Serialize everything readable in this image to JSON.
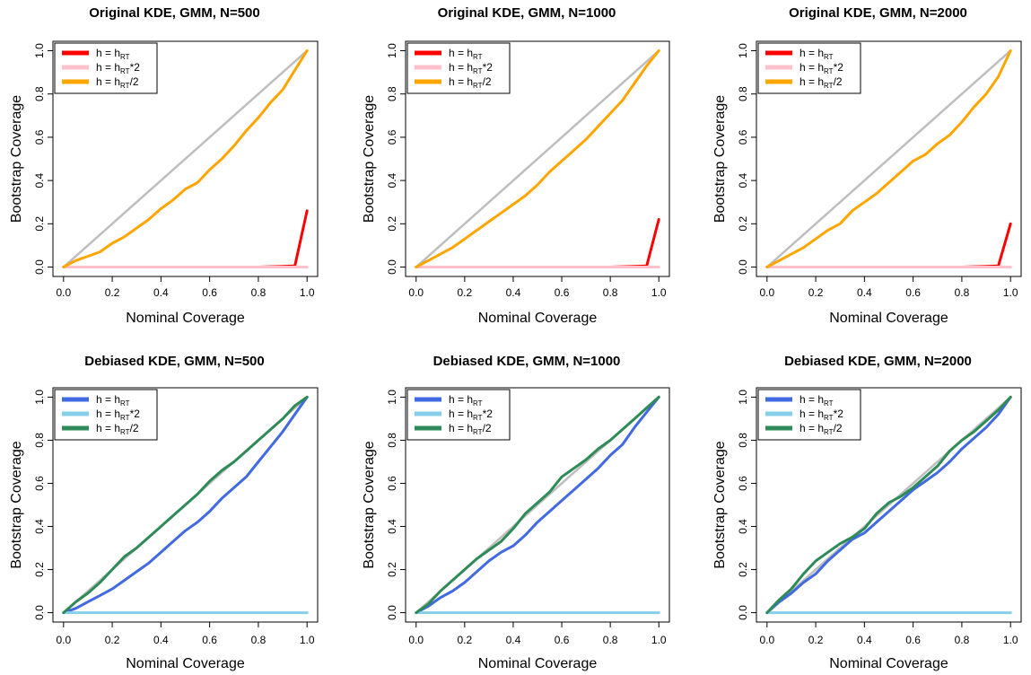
{
  "chart_data": [
    {
      "type": "line",
      "title": "Original KDE, GMM, N=500",
      "xlabel": "Nominal Coverage",
      "ylabel": "Bootstrap Coverage",
      "xlim": [
        0,
        1
      ],
      "ylim": [
        0,
        1
      ],
      "xticks": [
        "0.0",
        "0.2",
        "0.4",
        "0.6",
        "0.8",
        "1.0"
      ],
      "yticks": [
        "0.0",
        "0.2",
        "0.4",
        "0.6",
        "0.8",
        "1.0"
      ],
      "grid": false,
      "legend_position": "top-left",
      "reference_line": {
        "x": [
          0,
          1
        ],
        "y": [
          0,
          1
        ],
        "color": "#bebebe"
      },
      "series": [
        {
          "name": [
            "h = h",
            "RT",
            ""
          ],
          "color": "#ff0000",
          "x": [
            0,
            0.1,
            0.2,
            0.3,
            0.4,
            0.5,
            0.6,
            0.7,
            0.8,
            0.9,
            0.95,
            1.0
          ],
          "y": [
            0,
            0,
            0,
            0,
            0,
            0,
            0,
            0,
            0,
            0.003,
            0.005,
            0.26
          ]
        },
        {
          "name": [
            "h = h",
            "RT",
            "*2"
          ],
          "color": "#ffc0cb",
          "x": [
            0,
            1
          ],
          "y": [
            0,
            0
          ]
        },
        {
          "name": [
            "h = h",
            "RT",
            "/2"
          ],
          "color": "#ffa500",
          "x": [
            0,
            0.05,
            0.1,
            0.15,
            0.2,
            0.25,
            0.3,
            0.35,
            0.4,
            0.45,
            0.5,
            0.55,
            0.6,
            0.65,
            0.7,
            0.75,
            0.8,
            0.85,
            0.9,
            0.95,
            1.0
          ],
          "y": [
            0,
            0.03,
            0.05,
            0.07,
            0.11,
            0.14,
            0.18,
            0.22,
            0.27,
            0.31,
            0.36,
            0.39,
            0.45,
            0.5,
            0.56,
            0.63,
            0.69,
            0.76,
            0.82,
            0.91,
            1.0
          ]
        }
      ]
    },
    {
      "type": "line",
      "title": "Original KDE, GMM, N=1000",
      "xlabel": "Nominal Coverage",
      "ylabel": "Bootstrap Coverage",
      "xlim": [
        0,
        1
      ],
      "ylim": [
        0,
        1
      ],
      "xticks": [
        "0.0",
        "0.2",
        "0.4",
        "0.6",
        "0.8",
        "1.0"
      ],
      "yticks": [
        "0.0",
        "0.2",
        "0.4",
        "0.6",
        "0.8",
        "1.0"
      ],
      "grid": false,
      "legend_position": "top-left",
      "reference_line": {
        "x": [
          0,
          1
        ],
        "y": [
          0,
          1
        ],
        "color": "#bebebe"
      },
      "series": [
        {
          "name": [
            "h = h",
            "RT",
            ""
          ],
          "color": "#ff0000",
          "x": [
            0,
            0.1,
            0.2,
            0.3,
            0.4,
            0.5,
            0.6,
            0.7,
            0.8,
            0.9,
            0.95,
            1.0
          ],
          "y": [
            0,
            0,
            0,
            0,
            0,
            0,
            0,
            0,
            0,
            0.003,
            0.005,
            0.22
          ]
        },
        {
          "name": [
            "h = h",
            "RT",
            "*2"
          ],
          "color": "#ffc0cb",
          "x": [
            0,
            1
          ],
          "y": [
            0,
            0
          ]
        },
        {
          "name": [
            "h = h",
            "RT",
            "/2"
          ],
          "color": "#ffa500",
          "x": [
            0,
            0.05,
            0.1,
            0.15,
            0.2,
            0.25,
            0.3,
            0.35,
            0.4,
            0.45,
            0.5,
            0.55,
            0.6,
            0.65,
            0.7,
            0.75,
            0.8,
            0.85,
            0.9,
            0.95,
            1.0
          ],
          "y": [
            0,
            0.03,
            0.06,
            0.09,
            0.13,
            0.17,
            0.21,
            0.25,
            0.29,
            0.33,
            0.38,
            0.44,
            0.49,
            0.54,
            0.59,
            0.65,
            0.71,
            0.77,
            0.85,
            0.93,
            1.0
          ]
        }
      ]
    },
    {
      "type": "line",
      "title": "Original KDE, GMM, N=2000",
      "xlabel": "Nominal Coverage",
      "ylabel": "Bootstrap Coverage",
      "xlim": [
        0,
        1
      ],
      "ylim": [
        0,
        1
      ],
      "xticks": [
        "0.0",
        "0.2",
        "0.4",
        "0.6",
        "0.8",
        "1.0"
      ],
      "yticks": [
        "0.0",
        "0.2",
        "0.4",
        "0.6",
        "0.8",
        "1.0"
      ],
      "grid": false,
      "legend_position": "top-left",
      "reference_line": {
        "x": [
          0,
          1
        ],
        "y": [
          0,
          1
        ],
        "color": "#bebebe"
      },
      "series": [
        {
          "name": [
            "h = h",
            "RT",
            ""
          ],
          "color": "#ff0000",
          "x": [
            0,
            0.1,
            0.2,
            0.3,
            0.4,
            0.5,
            0.6,
            0.7,
            0.8,
            0.9,
            0.95,
            1.0
          ],
          "y": [
            0,
            0,
            0,
            0,
            0,
            0,
            0,
            0,
            0,
            0.003,
            0.005,
            0.2
          ]
        },
        {
          "name": [
            "h = h",
            "RT",
            "*2"
          ],
          "color": "#ffc0cb",
          "x": [
            0,
            1
          ],
          "y": [
            0,
            0
          ]
        },
        {
          "name": [
            "h = h",
            "RT",
            "/2"
          ],
          "color": "#ffa500",
          "x": [
            0,
            0.05,
            0.1,
            0.15,
            0.2,
            0.25,
            0.3,
            0.35,
            0.4,
            0.45,
            0.5,
            0.55,
            0.6,
            0.65,
            0.7,
            0.75,
            0.8,
            0.85,
            0.9,
            0.95,
            1.0
          ],
          "y": [
            0,
            0.03,
            0.06,
            0.09,
            0.13,
            0.17,
            0.2,
            0.26,
            0.3,
            0.34,
            0.39,
            0.44,
            0.49,
            0.52,
            0.57,
            0.61,
            0.67,
            0.74,
            0.8,
            0.88,
            1.0
          ]
        }
      ]
    },
    {
      "type": "line",
      "title": "Debiased KDE, GMM, N=500",
      "xlabel": "Nominal Coverage",
      "ylabel": "Bootstrap Coverage",
      "xlim": [
        0,
        1
      ],
      "ylim": [
        0,
        1
      ],
      "xticks": [
        "0.0",
        "0.2",
        "0.4",
        "0.6",
        "0.8",
        "1.0"
      ],
      "yticks": [
        "0.0",
        "0.2",
        "0.4",
        "0.6",
        "0.8",
        "1.0"
      ],
      "grid": false,
      "legend_position": "top-left",
      "reference_line": {
        "x": [
          0,
          1
        ],
        "y": [
          0,
          1
        ],
        "color": "#bebebe"
      },
      "series": [
        {
          "name": [
            "h = h",
            "RT",
            ""
          ],
          "color": "#4169e1",
          "x": [
            0,
            0.05,
            0.1,
            0.15,
            0.2,
            0.25,
            0.3,
            0.35,
            0.4,
            0.45,
            0.5,
            0.55,
            0.6,
            0.65,
            0.7,
            0.75,
            0.8,
            0.85,
            0.9,
            0.95,
            1.0
          ],
          "y": [
            0,
            0.02,
            0.05,
            0.08,
            0.11,
            0.15,
            0.19,
            0.23,
            0.28,
            0.33,
            0.38,
            0.42,
            0.47,
            0.53,
            0.58,
            0.63,
            0.7,
            0.77,
            0.84,
            0.92,
            1.0
          ]
        },
        {
          "name": [
            "h = h",
            "RT",
            "*2"
          ],
          "color": "#87ceeb",
          "x": [
            0,
            1
          ],
          "y": [
            0,
            0
          ]
        },
        {
          "name": [
            "h = h",
            "RT",
            "/2"
          ],
          "color": "#2e8b57",
          "x": [
            0,
            0.05,
            0.1,
            0.15,
            0.2,
            0.25,
            0.3,
            0.35,
            0.4,
            0.45,
            0.5,
            0.55,
            0.6,
            0.65,
            0.7,
            0.75,
            0.8,
            0.85,
            0.9,
            0.95,
            1.0
          ],
          "y": [
            0,
            0.05,
            0.09,
            0.14,
            0.2,
            0.26,
            0.3,
            0.35,
            0.4,
            0.45,
            0.5,
            0.55,
            0.61,
            0.66,
            0.7,
            0.75,
            0.8,
            0.85,
            0.9,
            0.96,
            1.0
          ]
        }
      ]
    },
    {
      "type": "line",
      "title": "Debiased KDE, GMM, N=1000",
      "xlabel": "Nominal Coverage",
      "ylabel": "Bootstrap Coverage",
      "xlim": [
        0,
        1
      ],
      "ylim": [
        0,
        1
      ],
      "xticks": [
        "0.0",
        "0.2",
        "0.4",
        "0.6",
        "0.8",
        "1.0"
      ],
      "yticks": [
        "0.0",
        "0.2",
        "0.4",
        "0.6",
        "0.8",
        "1.0"
      ],
      "grid": false,
      "legend_position": "top-left",
      "reference_line": {
        "x": [
          0,
          1
        ],
        "y": [
          0,
          1
        ],
        "color": "#bebebe"
      },
      "series": [
        {
          "name": [
            "h = h",
            "RT",
            ""
          ],
          "color": "#4169e1",
          "x": [
            0,
            0.05,
            0.1,
            0.15,
            0.2,
            0.25,
            0.3,
            0.35,
            0.4,
            0.45,
            0.5,
            0.55,
            0.6,
            0.65,
            0.7,
            0.75,
            0.8,
            0.85,
            0.9,
            0.95,
            1.0
          ],
          "y": [
            0,
            0.03,
            0.07,
            0.1,
            0.14,
            0.19,
            0.24,
            0.28,
            0.31,
            0.36,
            0.42,
            0.47,
            0.52,
            0.57,
            0.62,
            0.67,
            0.73,
            0.78,
            0.86,
            0.93,
            1.0
          ]
        },
        {
          "name": [
            "h = h",
            "RT",
            "*2"
          ],
          "color": "#87ceeb",
          "x": [
            0,
            1
          ],
          "y": [
            0,
            0
          ]
        },
        {
          "name": [
            "h = h",
            "RT",
            "/2"
          ],
          "color": "#2e8b57",
          "x": [
            0,
            0.05,
            0.1,
            0.15,
            0.2,
            0.25,
            0.3,
            0.35,
            0.4,
            0.45,
            0.5,
            0.55,
            0.6,
            0.65,
            0.7,
            0.75,
            0.8,
            0.85,
            0.9,
            0.95,
            1.0
          ],
          "y": [
            0,
            0.04,
            0.1,
            0.15,
            0.2,
            0.25,
            0.29,
            0.33,
            0.39,
            0.46,
            0.51,
            0.56,
            0.63,
            0.67,
            0.71,
            0.76,
            0.8,
            0.85,
            0.9,
            0.95,
            1.0
          ]
        }
      ]
    },
    {
      "type": "line",
      "title": "Debiased KDE, GMM, N=2000",
      "xlabel": "Nominal Coverage",
      "ylabel": "Bootstrap Coverage",
      "xlim": [
        0,
        1
      ],
      "ylim": [
        0,
        1
      ],
      "xticks": [
        "0.0",
        "0.2",
        "0.4",
        "0.6",
        "0.8",
        "1.0"
      ],
      "yticks": [
        "0.0",
        "0.2",
        "0.4",
        "0.6",
        "0.8",
        "1.0"
      ],
      "grid": false,
      "legend_position": "top-left",
      "reference_line": {
        "x": [
          0,
          1
        ],
        "y": [
          0,
          1
        ],
        "color": "#bebebe"
      },
      "series": [
        {
          "name": [
            "h = h",
            "RT",
            ""
          ],
          "color": "#4169e1",
          "x": [
            0,
            0.05,
            0.1,
            0.15,
            0.2,
            0.25,
            0.3,
            0.35,
            0.4,
            0.45,
            0.5,
            0.55,
            0.6,
            0.65,
            0.7,
            0.75,
            0.8,
            0.85,
            0.9,
            0.95,
            1.0
          ],
          "y": [
            0,
            0.05,
            0.09,
            0.14,
            0.18,
            0.24,
            0.29,
            0.34,
            0.37,
            0.42,
            0.47,
            0.52,
            0.57,
            0.61,
            0.65,
            0.7,
            0.76,
            0.81,
            0.86,
            0.92,
            1.0
          ]
        },
        {
          "name": [
            "h = h",
            "RT",
            "*2"
          ],
          "color": "#87ceeb",
          "x": [
            0,
            1
          ],
          "y": [
            0,
            0
          ]
        },
        {
          "name": [
            "h = h",
            "RT",
            "/2"
          ],
          "color": "#2e8b57",
          "x": [
            0,
            0.05,
            0.1,
            0.15,
            0.2,
            0.25,
            0.3,
            0.35,
            0.4,
            0.45,
            0.5,
            0.55,
            0.6,
            0.65,
            0.7,
            0.75,
            0.8,
            0.85,
            0.9,
            0.95,
            1.0
          ],
          "y": [
            0,
            0.06,
            0.11,
            0.18,
            0.24,
            0.28,
            0.32,
            0.35,
            0.39,
            0.46,
            0.51,
            0.54,
            0.58,
            0.63,
            0.68,
            0.75,
            0.8,
            0.84,
            0.89,
            0.94,
            1.0
          ]
        }
      ]
    }
  ]
}
